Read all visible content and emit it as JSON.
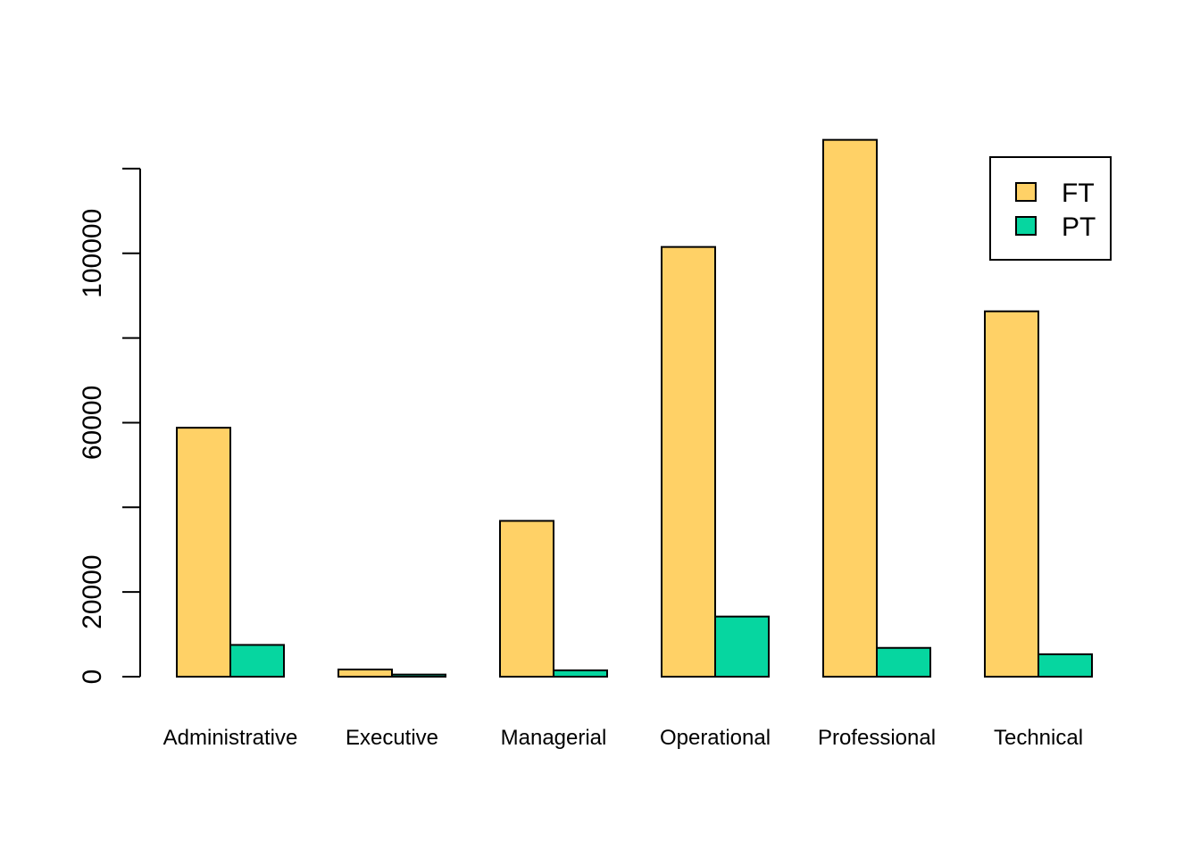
{
  "chart_data": {
    "type": "bar",
    "title": "",
    "xlabel": "",
    "ylabel": "",
    "categories": [
      "Administrative",
      "Executive",
      "Managerial",
      "Operational",
      "Professional",
      "Technical"
    ],
    "series": [
      {
        "name": "FT",
        "color": "#FFD166",
        "values": [
          58800,
          1700,
          36800,
          101500,
          126800,
          86300
        ]
      },
      {
        "name": "PT",
        "color": "#06D6A0",
        "values": [
          7500,
          500,
          1500,
          14200,
          6800,
          5300
        ]
      }
    ],
    "y_ticks": [
      0,
      20000,
      40000,
      60000,
      80000,
      100000,
      120000
    ],
    "y_tick_labels": [
      "0",
      "20000",
      "",
      "60000",
      "",
      "100000",
      ""
    ],
    "ylim": [
      0,
      120000
    ],
    "grid": false,
    "legend_position": "top-right"
  }
}
